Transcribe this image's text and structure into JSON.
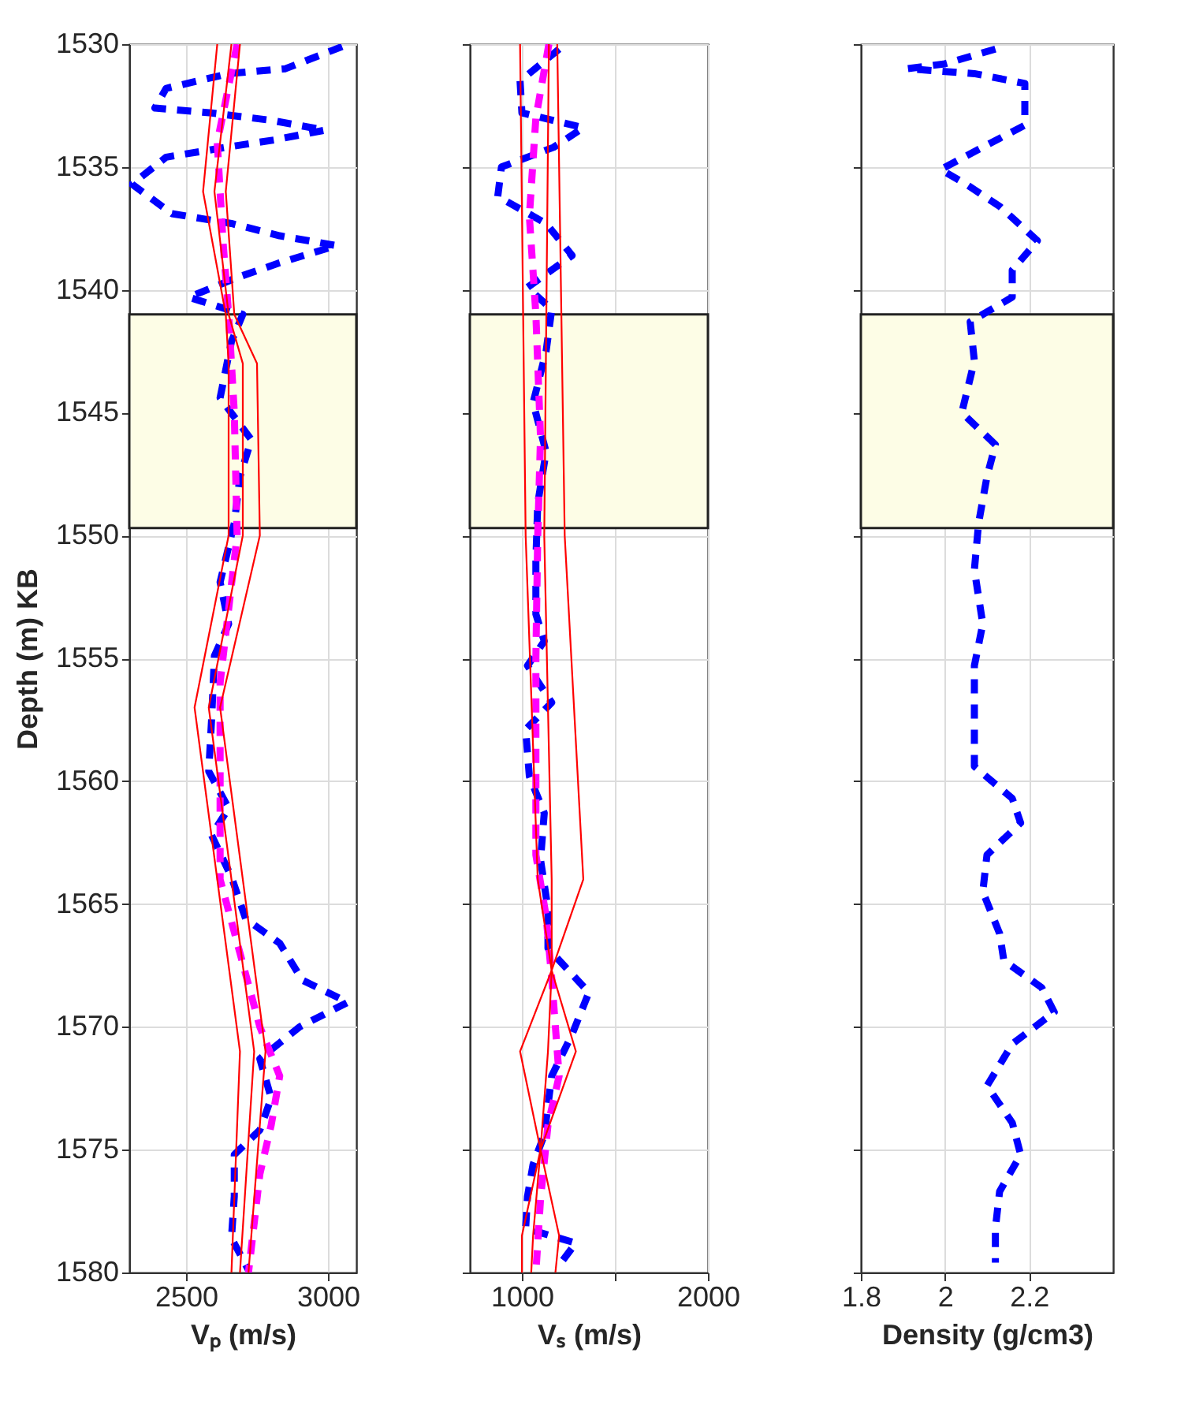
{
  "chart_data": [
    {
      "type": "line",
      "xlabel": "Vₚ (m/s)",
      "ylabel": "Depth (m) KB",
      "xlim": [
        2300,
        3100
      ],
      "xticks": [
        2500,
        3000
      ],
      "ylim": [
        1580,
        1530
      ],
      "yticks": [
        1530,
        1535,
        1540,
        1545,
        1550,
        1555,
        1560,
        1565,
        1570,
        1575,
        1580
      ],
      "grid": true,
      "bands": [
        {
          "axis": "y",
          "from": 1541,
          "to": 1549.7,
          "color": "#fdfde6"
        }
      ],
      "series": [
        {
          "color": "#0000ff",
          "line_style": "dashed",
          "x": [
            3050,
            2850,
            2650,
            2430,
            2390,
            2590,
            2800,
            2990,
            2810,
            2640,
            2430,
            2310,
            2450,
            2660,
            2830,
            3030,
            2830,
            2680,
            2510,
            2700,
            2660,
            2620,
            2730,
            2690,
            2670,
            2620,
            2650,
            2600,
            2590,
            2580,
            2650,
            2590,
            2660,
            2710,
            2830,
            2910,
            3070,
            2900,
            2760,
            2800,
            2760,
            2670,
            2670,
            2660,
            2720
          ],
          "values": [
            1530.1,
            1531,
            1531.2,
            1531.8,
            1532.6,
            1532.8,
            1533.1,
            1533.5,
            1533.9,
            1534.2,
            1534.6,
            1535.7,
            1536.9,
            1537.3,
            1537.8,
            1538.2,
            1538.9,
            1539.5,
            1540.3,
            1541,
            1542.1,
            1544.4,
            1546.1,
            1547.6,
            1549.5,
            1551.9,
            1553.6,
            1554.9,
            1557.5,
            1559.6,
            1561.1,
            1562.2,
            1563.9,
            1565.6,
            1566.6,
            1568.1,
            1569,
            1570,
            1571.3,
            1572.9,
            1574.2,
            1575.2,
            1576.9,
            1578.6,
            1579.9
          ]
        },
        {
          "color": "#ff00ff",
          "line_style": "dashed",
          "x": [
            2680,
            2610,
            2630,
            2650,
            2670,
            2680,
            2650,
            2620,
            2620,
            2620,
            2690,
            2760,
            2830,
            2800,
            2760,
            2720
          ],
          "values": [
            1530,
            1534,
            1538,
            1541,
            1545,
            1550,
            1553,
            1556,
            1560,
            1564,
            1567,
            1570,
            1572,
            1574,
            1576,
            1580
          ]
        },
        {
          "color": "#ff0000",
          "line_style": "solid",
          "x": [
            2610,
            2560,
            2640,
            2650,
            2650,
            2530,
            2690,
            2660
          ],
          "values": [
            1530,
            1536,
            1541,
            1543,
            1550,
            1557,
            1571,
            1580
          ]
        },
        {
          "color": "#ff0000",
          "line_style": "solid",
          "x": [
            2660,
            2600,
            2650,
            2700,
            2700,
            2580,
            2740,
            2690
          ],
          "values": [
            1530,
            1536,
            1541,
            1543,
            1550,
            1557,
            1571,
            1580
          ]
        },
        {
          "color": "#ff0000",
          "line_style": "solid",
          "x": [
            2690,
            2640,
            2670,
            2750,
            2760,
            2620,
            2780,
            2720
          ],
          "values": [
            1530,
            1536,
            1541,
            1543,
            1550,
            1557,
            1571,
            1580
          ]
        }
      ]
    },
    {
      "type": "line",
      "xlabel": "Vₛ (m/s)",
      "xlim": [
        720,
        2000
      ],
      "xticks": [
        1000,
        {
          "value": 1500,
          "label": null
        },
        2000
      ],
      "ylim": [
        1580,
        1530
      ],
      "yticks": [
        1530,
        1535,
        1540,
        1545,
        1550,
        1555,
        1560,
        1565,
        1570,
        1575,
        1580
      ],
      "grid": true,
      "tick_labels": "x",
      "bands": [
        {
          "axis": "y",
          "from": 1541,
          "to": 1549.7,
          "color": "#fdfde6"
        }
      ],
      "series": [
        {
          "color": "#0000ff",
          "line_style": "dashed",
          "x": [
            1200,
            990,
            1000,
            1330,
            1170,
            890,
            870,
            1130,
            1270,
            1030,
            1160,
            1130,
            1060,
            1130,
            1085,
            1075,
            1075,
            1120,
            1030,
            1160,
            1020,
            1040,
            1120,
            1100,
            1140,
            1140,
            1360,
            1270,
            1160,
            1120,
            1060,
            1030,
            1020,
            1290,
            1200
          ],
          "values": [
            1530.2,
            1531.5,
            1532.8,
            1533.4,
            1534.2,
            1535,
            1536.2,
            1537.3,
            1538.6,
            1539.9,
            1540.8,
            1542.5,
            1544.6,
            1546.6,
            1548.7,
            1551,
            1553.2,
            1554.3,
            1555.3,
            1556.8,
            1557.9,
            1559.8,
            1561.3,
            1563.2,
            1565.2,
            1566.8,
            1568.6,
            1570.3,
            1572,
            1574.4,
            1575.6,
            1576.9,
            1578.2,
            1578.8,
            1579.7
          ]
        },
        {
          "color": "#ff00ff",
          "line_style": "dashed",
          "x": [
            1145,
            1075,
            1040,
            1075,
            1100,
            1085,
            1075,
            1075,
            1075,
            1075,
            1130,
            1160,
            1200,
            1140,
            1100,
            1075
          ],
          "values": [
            1530,
            1533,
            1537,
            1541,
            1546,
            1550,
            1555,
            1557,
            1561,
            1563,
            1565.5,
            1568,
            1572,
            1574,
            1577,
            1580
          ]
        },
        {
          "color": "#ff0000",
          "line_style": "solid",
          "x": [
            990,
            1020,
            1085,
            1160,
            990,
            1100,
            1000,
            1000
          ],
          "values": [
            1530,
            1550,
            1564,
            1567.7,
            1571,
            1575,
            1578.5,
            1580
          ]
        },
        {
          "color": "#ff0000",
          "line_style": "solid",
          "x": [
            1145,
            1120,
            1160,
            1160,
            1140,
            1100,
            1060,
            1050
          ],
          "values": [
            1530,
            1550,
            1564,
            1567.7,
            1571,
            1575,
            1578.5,
            1580
          ]
        },
        {
          "color": "#ff0000",
          "line_style": "solid",
          "x": [
            1190,
            1230,
            1330,
            1160,
            1290,
            1100,
            1200,
            1180
          ],
          "values": [
            1530,
            1550,
            1564,
            1567.7,
            1571,
            1575,
            1578.5,
            1580
          ]
        }
      ]
    },
    {
      "type": "line",
      "xlabel": "Density (g/cm3)",
      "xlim": [
        1.8,
        2.4
      ],
      "xticks": [
        1.8,
        2,
        2.2
      ],
      "ylim": [
        1580,
        1530
      ],
      "yticks": [
        1530,
        1535,
        1540,
        1545,
        1550,
        1555,
        1560,
        1565,
        1570,
        1575,
        1580
      ],
      "grid": true,
      "tick_labels": "x",
      "bands": [
        {
          "axis": "y",
          "from": 1541,
          "to": 1549.7,
          "color": "#fdfde6"
        }
      ],
      "series": [
        {
          "color": "#0000ff",
          "line_style": "dashed",
          "x": [
            2.12,
            2.0,
            1.91,
            2.07,
            2.19,
            2.19,
            2.1,
            1.99,
            2.05,
            2.13,
            2.22,
            2.16,
            2.16,
            2.06,
            2.07,
            2.04,
            2.12,
            2.1,
            2.08,
            2.07,
            2.09,
            2.07,
            2.07,
            2.07,
            2.16,
            2.18,
            2.1,
            2.09,
            2.13,
            2.14,
            2.23,
            2.26,
            2.16,
            2.1,
            2.16,
            2.18,
            2.13,
            2.12,
            2.12
          ],
          "values": [
            1530.2,
            1530.8,
            1531,
            1531.2,
            1531.6,
            1533.3,
            1534.1,
            1535.1,
            1535.7,
            1536.6,
            1538,
            1539.2,
            1540.3,
            1541.3,
            1542.9,
            1545,
            1546.3,
            1547.6,
            1549.5,
            1551.4,
            1553.6,
            1555.3,
            1557.2,
            1559.4,
            1560.7,
            1561.7,
            1563,
            1564.5,
            1566.2,
            1567.3,
            1568.4,
            1569.4,
            1570.7,
            1572.4,
            1573.9,
            1575.2,
            1576.7,
            1578.2,
            1579.6
          ]
        }
      ]
    }
  ]
}
